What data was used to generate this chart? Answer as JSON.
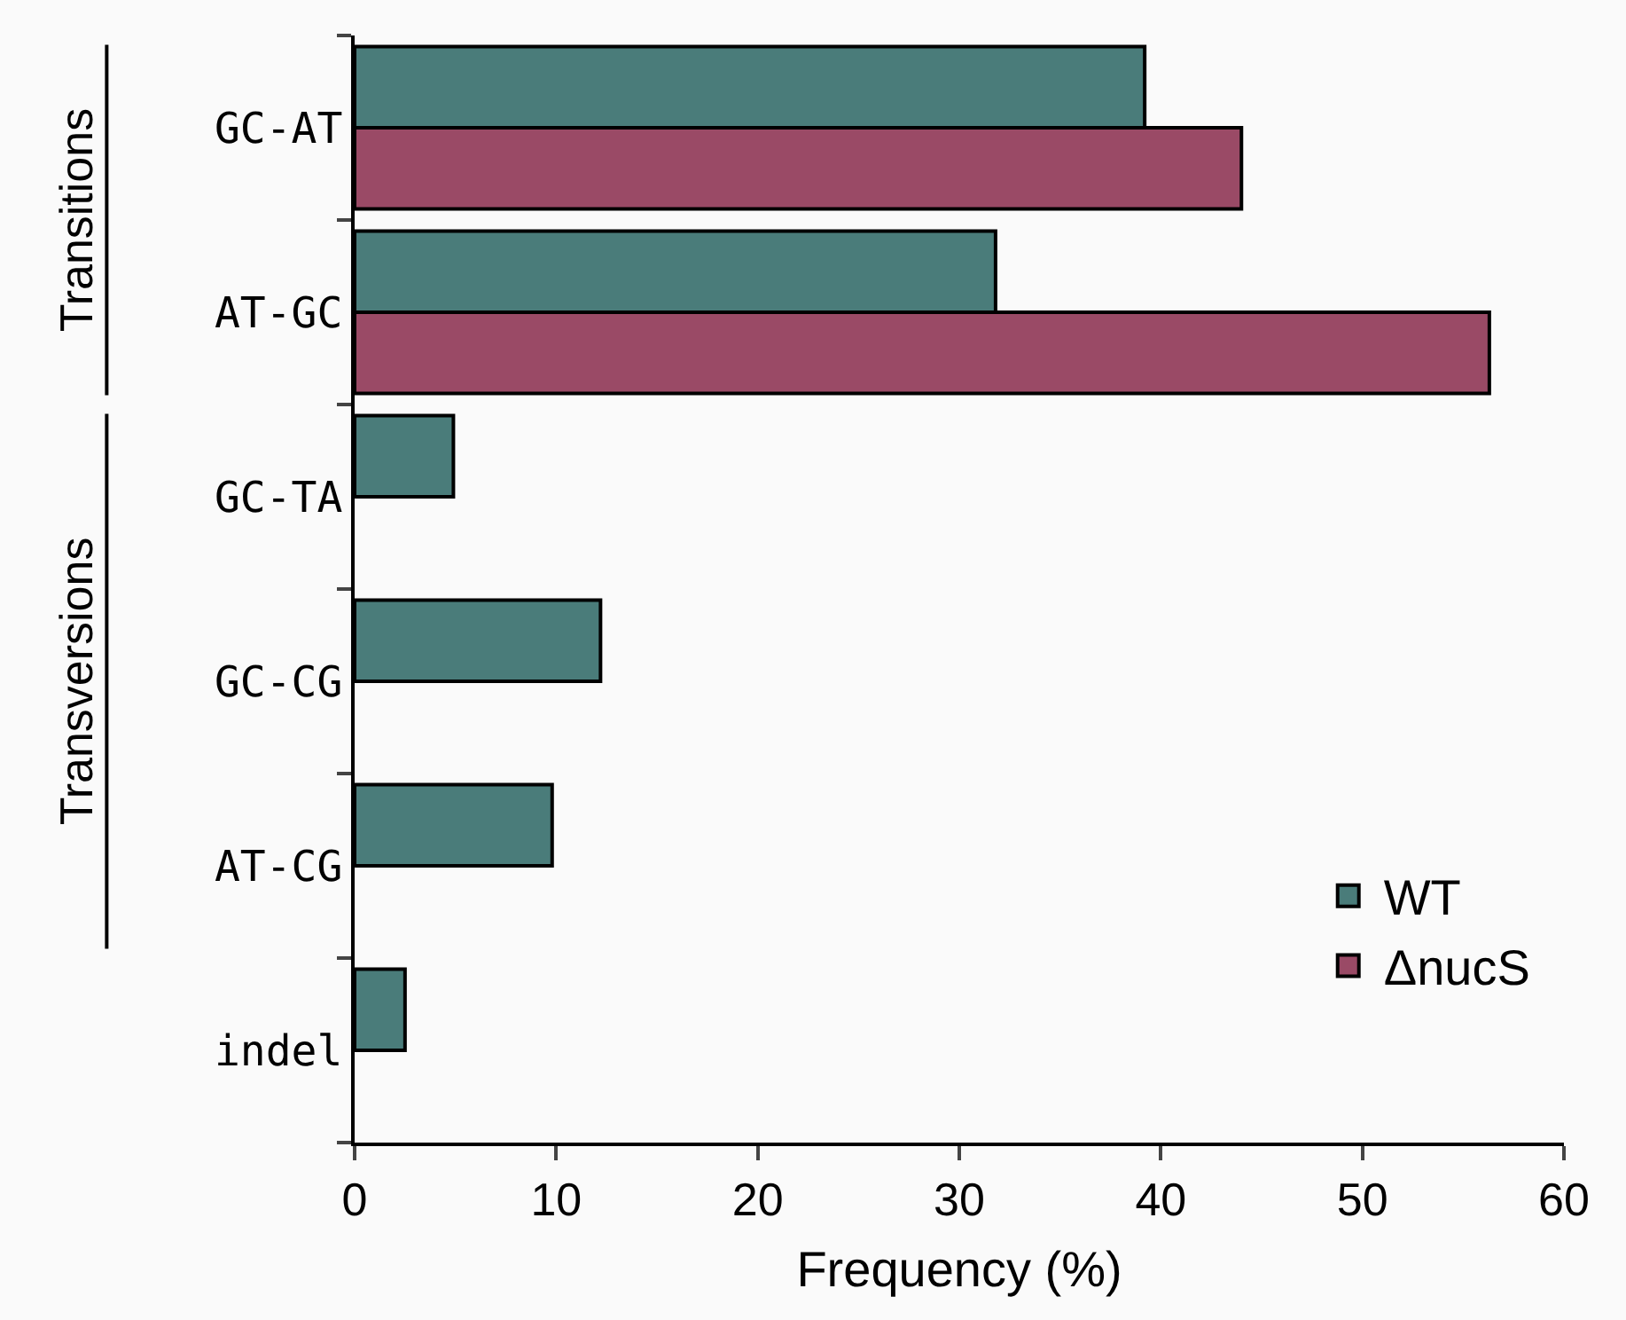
{
  "chart_data": {
    "type": "bar",
    "orientation": "horizontal",
    "xlabel": "Frequency (%)",
    "categories": [
      "GC-AT",
      "AT-GC",
      "GC-TA",
      "GC-CG",
      "AT-CG",
      "indel"
    ],
    "series": [
      {
        "name": "WT",
        "color": "#4a7c7a",
        "values": [
          39.2,
          31.8,
          4.9,
          12.2,
          9.8,
          2.5
        ]
      },
      {
        "name": "ΔnucS",
        "color": "#9a4a66",
        "values": [
          44.0,
          56.3,
          null,
          null,
          null,
          null
        ]
      }
    ],
    "xlim": [
      0,
      60
    ],
    "xticks": [
      0,
      10,
      20,
      30,
      40,
      50,
      60
    ],
    "annotations": [
      "Transitions",
      "Transversions"
    ],
    "legend": "bottom right"
  }
}
